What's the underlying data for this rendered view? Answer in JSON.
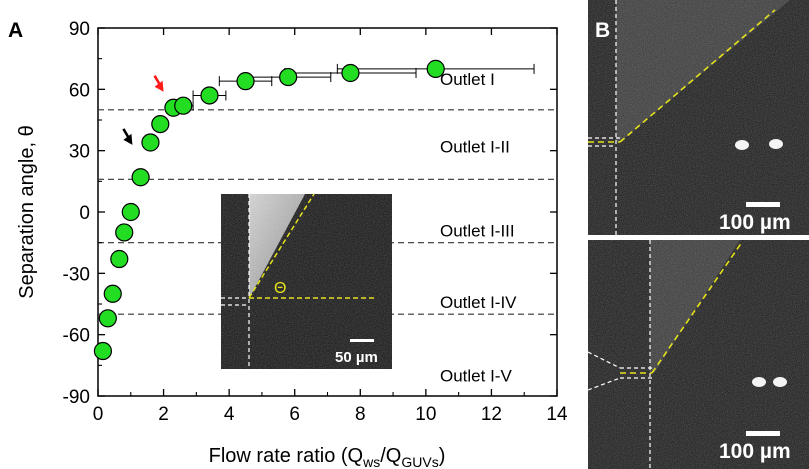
{
  "panel_a": {
    "letter": "A",
    "inset": {
      "scalebar_label": "50 µm",
      "angle_symbol": "Θ"
    }
  },
  "panel_b": {
    "letter": "B",
    "top": {
      "scalebar_label": "100 µm"
    },
    "bottom": {
      "scalebar_label": "100 µm"
    }
  },
  "colors": {
    "marker_fill": "#22dd22",
    "guide_yellow": "#e5e21a",
    "red_arrow": "#ff1a1a",
    "black_arrow": "#000000"
  },
  "chart_data": {
    "type": "scatter",
    "xlabel": {
      "text": "Flow rate ratio (Q",
      "sub1": "ws",
      "mid": "/Q",
      "sub2": "GUVs",
      "end": ")"
    },
    "ylabel": "Separation angle, θ",
    "xlim": [
      0,
      14
    ],
    "ylim": [
      -90,
      90
    ],
    "xticks": [
      "0",
      "2",
      "4",
      "6",
      "8",
      "10",
      "12",
      "14"
    ],
    "yticks": [
      "-90",
      "-60",
      "-30",
      "0",
      "30",
      "60",
      "90"
    ],
    "grid": false,
    "reference_lines": [
      50,
      16,
      -15,
      -50
    ],
    "region_labels": [
      {
        "text": "Outlet I",
        "y": 65
      },
      {
        "text": "Outlet I-II",
        "y": 32
      },
      {
        "text": "Outlet I-III",
        "y": -9
      },
      {
        "text": "Outlet I-IV",
        "y": -44
      },
      {
        "text": "Outlet I-V",
        "y": -80
      }
    ],
    "points": [
      {
        "x": 0.15,
        "y": -68,
        "xerr": 0.15
      },
      {
        "x": 0.3,
        "y": -52,
        "xerr": 0.15
      },
      {
        "x": 0.45,
        "y": -40,
        "xerr": 0.15
      },
      {
        "x": 0.65,
        "y": -23,
        "xerr": 0.15
      },
      {
        "x": 0.8,
        "y": -10,
        "xerr": 0.15
      },
      {
        "x": 1.0,
        "y": 0,
        "xerr": 0.15
      },
      {
        "x": 1.3,
        "y": 17,
        "xerr": 0.12
      },
      {
        "x": 1.6,
        "y": 34,
        "xerr": 0.1
      },
      {
        "x": 1.9,
        "y": 43,
        "xerr": 0.1
      },
      {
        "x": 2.3,
        "y": 51,
        "xerr": 0.15
      },
      {
        "x": 2.6,
        "y": 52,
        "xerr": 0.3
      },
      {
        "x": 3.4,
        "y": 57,
        "xerr": 0.5
      },
      {
        "x": 4.5,
        "y": 64,
        "xerr": 0.8
      },
      {
        "x": 5.8,
        "y": 66,
        "xerr": 1.3
      },
      {
        "x": 7.7,
        "y": 68,
        "xerr": 2.0
      },
      {
        "x": 10.3,
        "y": 70,
        "xerr": 3.0
      }
    ],
    "annotations": [
      {
        "kind": "arrow",
        "color": "red",
        "x": 2.0,
        "y": 52
      },
      {
        "kind": "arrow",
        "color": "black",
        "x": 1.05,
        "y": 26
      }
    ]
  }
}
